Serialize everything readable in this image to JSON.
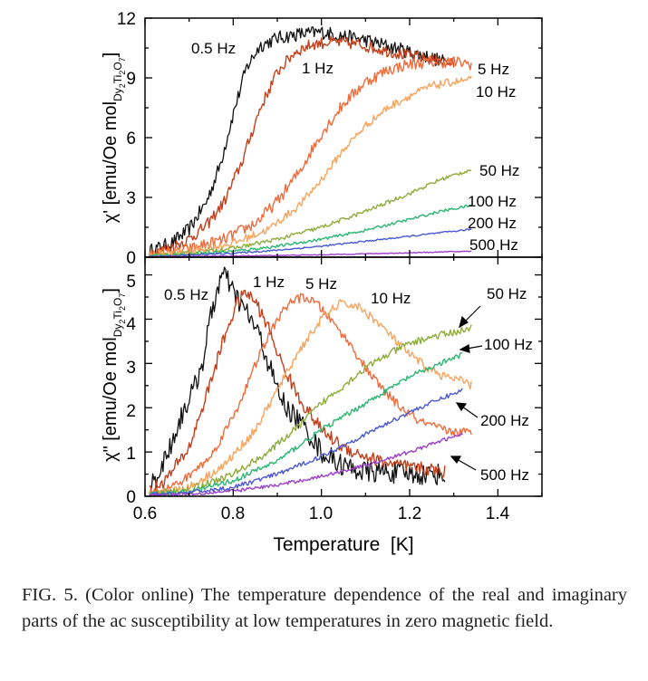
{
  "chart_data": [
    {
      "type": "line",
      "panel": "top",
      "ylabel_main": "χ' [emu/Oe mol",
      "ylabel_sub": "Dy",
      "ylabel_sub2": "2",
      "ylabel_sub3": "Ti",
      "ylabel_sub4": "2",
      "ylabel_sub5": "O",
      "ylabel_sub6": "7",
      "ylabel_end": "]",
      "xlim": [
        0.6,
        1.5
      ],
      "ylim": [
        0,
        12
      ],
      "yticks": [
        "0",
        "3",
        "6",
        "9",
        "12"
      ],
      "grid": false,
      "series": [
        {
          "name": "0.5 Hz",
          "color": "#111111",
          "noise": 0.35,
          "x": [
            0.61,
            0.66,
            0.7,
            0.74,
            0.77,
            0.8,
            0.83,
            0.86,
            0.9,
            0.95,
            1.0,
            1.05,
            1.1,
            1.15,
            1.2,
            1.25,
            1.28
          ],
          "y": [
            0.3,
            0.7,
            1.4,
            2.8,
            4.6,
            7.2,
            9.5,
            10.6,
            11.0,
            11.2,
            11.3,
            11.1,
            10.9,
            10.6,
            10.3,
            10.0,
            9.8
          ]
        },
        {
          "name": "1 Hz",
          "color": "#c2401c",
          "noise": 0.3,
          "x": [
            0.61,
            0.66,
            0.7,
            0.74,
            0.78,
            0.82,
            0.86,
            0.9,
            0.94,
            0.98,
            1.02,
            1.08,
            1.14,
            1.2,
            1.26,
            1.3
          ],
          "y": [
            0.2,
            0.5,
            0.9,
            1.6,
            2.8,
            4.8,
            7.4,
            9.3,
            10.3,
            10.7,
            10.8,
            10.7,
            10.4,
            10.1,
            9.9,
            9.7
          ]
        },
        {
          "name": "5 Hz",
          "color": "#f06b3a",
          "noise": 0.3,
          "x": [
            0.61,
            0.7,
            0.78,
            0.85,
            0.9,
            0.95,
            1.0,
            1.05,
            1.1,
            1.15,
            1.2,
            1.25,
            1.3,
            1.34
          ],
          "y": [
            0.1,
            0.4,
            0.9,
            1.7,
            2.8,
            4.3,
            6.2,
            7.7,
            8.8,
            9.4,
            9.7,
            9.8,
            9.8,
            9.7
          ]
        },
        {
          "name": "10 Hz",
          "color": "#f7a35c",
          "noise": 0.2,
          "x": [
            0.61,
            0.7,
            0.8,
            0.88,
            0.95,
            1.0,
            1.05,
            1.1,
            1.15,
            1.2,
            1.25,
            1.3,
            1.34
          ],
          "y": [
            0.1,
            0.3,
            0.7,
            1.4,
            2.6,
            3.9,
            5.4,
            6.6,
            7.5,
            8.1,
            8.6,
            8.8,
            8.9
          ]
        },
        {
          "name": "50 Hz",
          "color": "#8fac3a",
          "noise": 0.1,
          "x": [
            0.61,
            0.7,
            0.8,
            0.9,
            1.0,
            1.1,
            1.2,
            1.27,
            1.34
          ],
          "y": [
            0.05,
            0.2,
            0.45,
            0.9,
            1.5,
            2.3,
            3.2,
            3.9,
            4.4
          ]
        },
        {
          "name": "100 Hz",
          "color": "#2bb673",
          "noise": 0.07,
          "x": [
            0.61,
            0.7,
            0.8,
            0.9,
            1.0,
            1.1,
            1.2,
            1.27,
            1.34
          ],
          "y": [
            0.05,
            0.15,
            0.3,
            0.55,
            0.9,
            1.35,
            1.9,
            2.3,
            2.6
          ]
        },
        {
          "name": "200 Hz",
          "color": "#4a58d4",
          "noise": 0.04,
          "x": [
            0.61,
            0.7,
            0.8,
            0.9,
            1.0,
            1.1,
            1.2,
            1.34
          ],
          "y": [
            0.03,
            0.1,
            0.2,
            0.35,
            0.55,
            0.8,
            1.05,
            1.4
          ]
        },
        {
          "name": "500 Hz",
          "color": "#9a3fc7",
          "noise": 0.02,
          "x": [
            0.61,
            0.8,
            1.0,
            1.2,
            1.34
          ],
          "y": [
            0.02,
            0.06,
            0.12,
            0.22,
            0.3
          ]
        }
      ]
    },
    {
      "type": "line",
      "panel": "bottom",
      "ylabel_main": "χ\" [emu/Oe mol",
      "ylabel_sub": "Dy",
      "ylabel_sub2": "2",
      "ylabel_sub3": "Ti",
      "ylabel_sub4": "2",
      "ylabel_sub5": "O",
      "ylabel_sub6": "7",
      "ylabel_end": "]",
      "xlabel": "Temperature  [K]",
      "xlim": [
        0.6,
        1.5
      ],
      "ylim": [
        0,
        5.4
      ],
      "xticks": [
        "0.6",
        "0.8",
        "1.0",
        "1.2",
        "1.4"
      ],
      "yticks": [
        "0",
        "1",
        "2",
        "3",
        "4",
        "5"
      ],
      "grid": false,
      "series": [
        {
          "name": "0.5 Hz",
          "color": "#111111",
          "noise": 0.25,
          "x": [
            0.61,
            0.63,
            0.66,
            0.69,
            0.71,
            0.73,
            0.75,
            0.77,
            0.78,
            0.8,
            0.82,
            0.84,
            0.86,
            0.88,
            0.9,
            0.92,
            0.95,
            0.98,
            1.0,
            1.03,
            1.06,
            1.1,
            1.15,
            1.2,
            1.25,
            1.28
          ],
          "y": [
            0.2,
            0.5,
            1.2,
            2.0,
            2.4,
            3.0,
            4.1,
            4.9,
            5.0,
            4.6,
            4.3,
            4.0,
            3.6,
            3.0,
            2.4,
            2.0,
            1.7,
            1.3,
            1.0,
            0.8,
            0.65,
            0.55,
            0.55,
            0.5,
            0.5,
            0.5
          ]
        },
        {
          "name": "1 Hz",
          "color": "#c2401c",
          "noise": 0.15,
          "x": [
            0.61,
            0.65,
            0.7,
            0.74,
            0.78,
            0.81,
            0.83,
            0.85,
            0.88,
            0.91,
            0.95,
            1.0,
            1.05,
            1.1,
            1.15,
            1.2,
            1.25,
            1.28
          ],
          "y": [
            0.1,
            0.4,
            1.1,
            2.3,
            3.6,
            4.4,
            4.6,
            4.4,
            3.8,
            3.0,
            2.2,
            1.5,
            1.1,
            0.9,
            0.75,
            0.65,
            0.6,
            0.55
          ]
        },
        {
          "name": "5 Hz",
          "color": "#f06b3a",
          "noise": 0.1,
          "x": [
            0.61,
            0.68,
            0.75,
            0.81,
            0.86,
            0.9,
            0.93,
            0.96,
            0.99,
            1.02,
            1.06,
            1.1,
            1.14,
            1.18,
            1.22,
            1.26,
            1.3,
            1.34
          ],
          "y": [
            0.05,
            0.3,
            0.9,
            2.0,
            3.2,
            4.0,
            4.4,
            4.5,
            4.35,
            4.0,
            3.5,
            2.9,
            2.4,
            2.0,
            1.7,
            1.55,
            1.45,
            1.45
          ]
        },
        {
          "name": "10 Hz",
          "color": "#f7a35c",
          "noise": 0.1,
          "x": [
            0.61,
            0.7,
            0.78,
            0.85,
            0.9,
            0.95,
            1.0,
            1.04,
            1.08,
            1.12,
            1.16,
            1.2,
            1.24,
            1.28,
            1.32,
            1.34
          ],
          "y": [
            0.05,
            0.2,
            0.7,
            1.5,
            2.4,
            3.3,
            4.0,
            4.35,
            4.3,
            4.0,
            3.6,
            3.2,
            2.9,
            2.7,
            2.6,
            2.5
          ]
        },
        {
          "name": "50 Hz",
          "color": "#8fac3a",
          "noise": 0.08,
          "x": [
            0.61,
            0.7,
            0.8,
            0.88,
            0.95,
            1.0,
            1.05,
            1.1,
            1.15,
            1.2,
            1.25,
            1.3,
            1.34
          ],
          "y": [
            0.05,
            0.15,
            0.5,
            1.0,
            1.6,
            2.1,
            2.5,
            2.9,
            3.2,
            3.45,
            3.6,
            3.7,
            3.8
          ]
        },
        {
          "name": "100 Hz",
          "color": "#2bb673",
          "noise": 0.06,
          "x": [
            0.61,
            0.7,
            0.8,
            0.9,
            1.0,
            1.1,
            1.2,
            1.27,
            1.32
          ],
          "y": [
            0.05,
            0.1,
            0.35,
            0.8,
            1.5,
            2.1,
            2.7,
            3.0,
            3.2
          ]
        },
        {
          "name": "200 Hz",
          "color": "#4a58d4",
          "noise": 0.05,
          "x": [
            0.61,
            0.7,
            0.8,
            0.9,
            1.0,
            1.1,
            1.2,
            1.27,
            1.32
          ],
          "y": [
            0.03,
            0.08,
            0.2,
            0.5,
            0.9,
            1.4,
            1.9,
            2.2,
            2.4
          ]
        },
        {
          "name": "500 Hz",
          "color": "#9a3fc7",
          "noise": 0.04,
          "x": [
            0.61,
            0.7,
            0.8,
            0.9,
            1.0,
            1.1,
            1.2,
            1.27,
            1.32
          ],
          "y": [
            0.02,
            0.05,
            0.12,
            0.25,
            0.45,
            0.7,
            1.0,
            1.25,
            1.4
          ]
        }
      ]
    }
  ],
  "caption": "FIG. 5. (Color online) The temperature dependence of the real and imaginary parts of the ac susceptibility at low temperatures in zero magnetic field."
}
